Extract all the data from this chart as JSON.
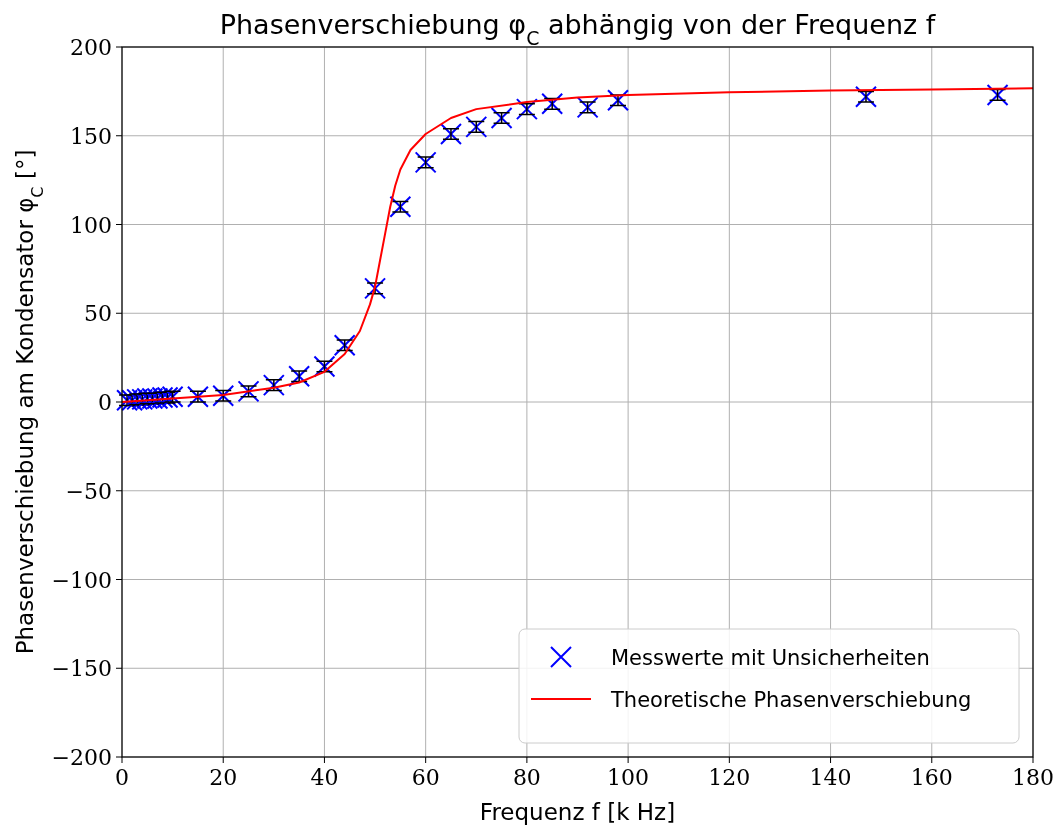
{
  "chart_data": {
    "type": "scatter",
    "title": "Phasenverschiebung φ$_{C}$ abhängig von der Frequenz f",
    "xlabel": "Frequenz f [k Hz]",
    "ylabel": "Phasenverschiebung am Kondensator φ$_{C}$ [°]",
    "xlim": [
      0,
      180
    ],
    "xticks": [
      0,
      20,
      40,
      60,
      80,
      100,
      120,
      140,
      160,
      180
    ],
    "ylim": [
      -200,
      200
    ],
    "yticks": [
      {
        "value": -200,
        "label": "−200"
      },
      {
        "value": -150,
        "label": "−150"
      },
      {
        "value": -100,
        "label": "−100"
      },
      {
        "value": -50,
        "label": "−50"
      },
      0,
      50,
      100,
      150,
      200
    ],
    "grid": true,
    "legend": "bottom right",
    "series": [
      {
        "name": "Messwerte mit Unsicherheiten",
        "marker": "cross",
        "color": "#0000ff",
        "x": [
          1,
          2,
          3,
          4,
          5,
          6,
          7,
          8,
          9,
          10,
          15,
          20,
          25,
          30,
          35,
          40,
          44,
          50,
          55,
          60,
          65,
          70,
          75,
          80,
          85,
          92,
          98,
          147,
          173
        ],
        "values": [
          1,
          1,
          1.5,
          1.5,
          2,
          2,
          2,
          2.5,
          2.5,
          3,
          3,
          3.5,
          6,
          9.5,
          14.5,
          20,
          32,
          64,
          110,
          135,
          151,
          155,
          160,
          165,
          168,
          166,
          170,
          172,
          173
        ],
        "errors": [
          3,
          3,
          3,
          3,
          3,
          3,
          3,
          3,
          3,
          3,
          3,
          3,
          3,
          3,
          3,
          3,
          3,
          3,
          3,
          3,
          3,
          3,
          3,
          3,
          3,
          3,
          3,
          3,
          3
        ]
      },
      {
        "name": "Theoretische Phasenverschiebung",
        "type": "line",
        "color": "#ff0000",
        "marker": "none",
        "x": [
          0,
          10,
          20,
          30,
          35,
          40,
          44,
          47,
          49,
          50,
          51,
          52,
          53,
          54,
          55,
          57,
          60,
          65,
          70,
          80,
          90,
          100,
          120,
          140,
          160,
          180
        ],
        "values": [
          0,
          2,
          4,
          8,
          11,
          17,
          27,
          40,
          55,
          65,
          80,
          95,
          110,
          122,
          131,
          142,
          151,
          160,
          165,
          169,
          171.5,
          173,
          174.5,
          175.5,
          176,
          176.7
        ]
      }
    ]
  }
}
